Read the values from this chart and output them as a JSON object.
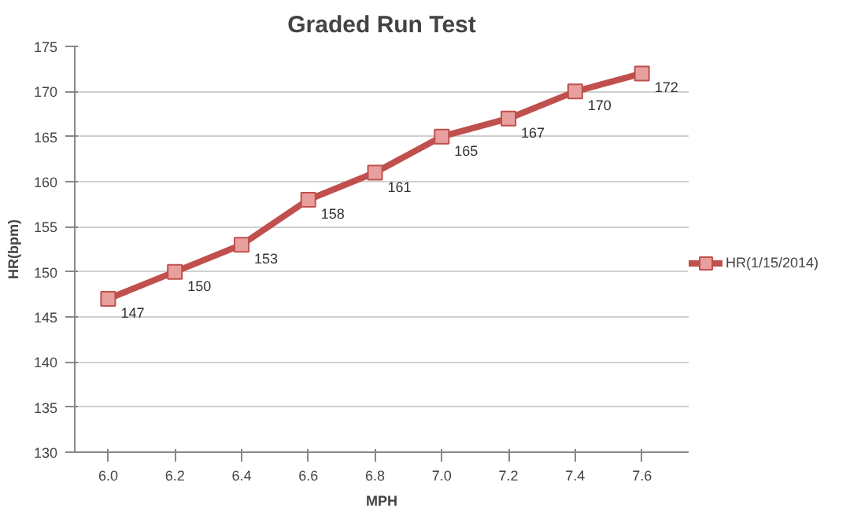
{
  "chart_data": {
    "type": "line",
    "title": "Graded Run Test",
    "xlabel": "MPH",
    "ylabel": "HR(bpm)",
    "categories": [
      "6.0",
      "6.2",
      "6.4",
      "6.6",
      "6.8",
      "7.0",
      "7.2",
      "7.4",
      "7.6"
    ],
    "series": [
      {
        "name": "HR(1/15/2014)",
        "color": "#c0504d",
        "values": [
          147,
          150,
          153,
          158,
          161,
          165,
          167,
          170,
          172
        ]
      }
    ],
    "ylim": [
      130,
      175
    ],
    "yticks": [
      130,
      135,
      140,
      145,
      150,
      155,
      160,
      165,
      170,
      175
    ],
    "grid": "y",
    "legend": "right",
    "marker": "square",
    "line_style": "solid",
    "data_labels": true
  }
}
